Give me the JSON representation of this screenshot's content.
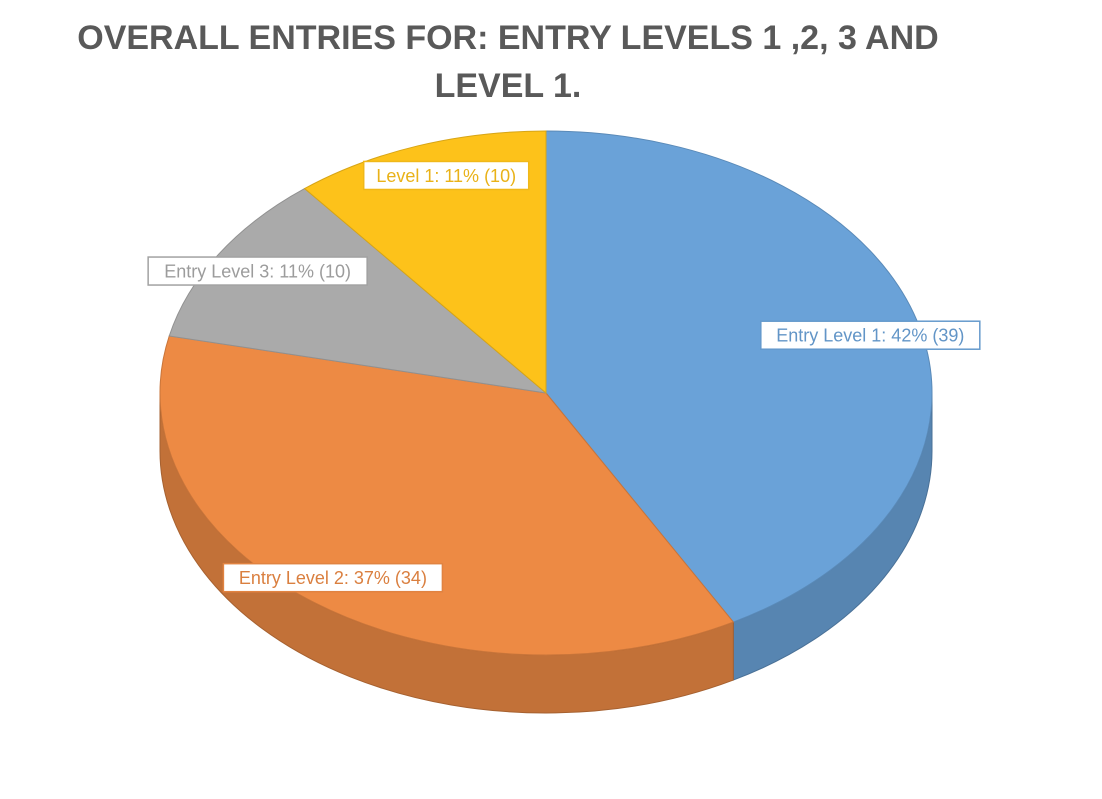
{
  "chart_data": {
    "type": "pie",
    "title": "OVERALL ENTRIES FOR: ENTRY LEVELS 1 ,2, 3 AND LEVEL 1.",
    "style": "3d",
    "slices": [
      {
        "name": "Entry Level 1",
        "value": 39,
        "percent": 42,
        "color": "#6aa2d8",
        "label": "Entry Level 1: 42% (39)"
      },
      {
        "name": "Entry Level 2",
        "value": 34,
        "percent": 37,
        "color": "#ed8a44",
        "label": "Entry Level 2: 37% (34)"
      },
      {
        "name": "Entry Level 3",
        "value": 10,
        "percent": 11,
        "color": "#aaaaaa",
        "label": "Entry Level 3: 11% (10)"
      },
      {
        "name": "Level 1",
        "value": 10,
        "percent": 11,
        "color": "#fdc21a",
        "label": "Level 1: 11% (10)"
      }
    ]
  }
}
